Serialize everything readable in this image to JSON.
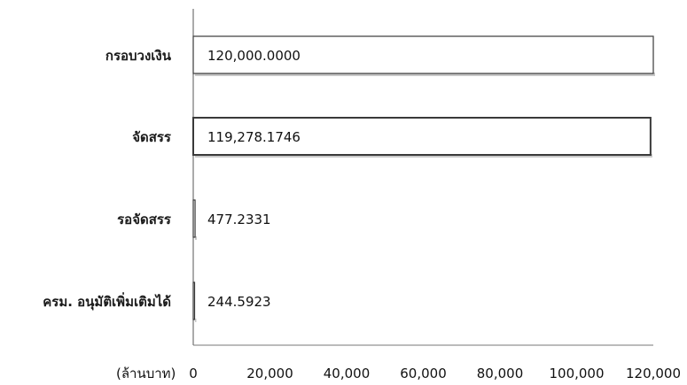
{
  "chart_data": {
    "type": "bar",
    "orientation": "horizontal",
    "categories": [
      "กรอบวงเงิน",
      "จัดสรร",
      "รอจัดสรร",
      "ครม. อนุมัติเพิ่มเติมได้"
    ],
    "values": [
      120000,
      119278.1746,
      477.2331,
      244.5923
    ],
    "value_labels": [
      "120,000.0000",
      "119,278.1746",
      "477.2331",
      "244.5923"
    ],
    "xlabel": "(ล้านบาท)",
    "xlim": [
      0,
      120000
    ],
    "xticks": [
      0,
      20000,
      40000,
      60000,
      80000,
      100000,
      120000
    ],
    "xtick_labels": [
      "0",
      "20,000",
      "40,000",
      "60,000",
      "80,000",
      "100,000",
      "120,000"
    ],
    "grid": false,
    "legend": "none",
    "bar_fill": "#ffffff",
    "bar_outline": "#3a3a3a",
    "bar_shadow": "#9a9a9a"
  }
}
